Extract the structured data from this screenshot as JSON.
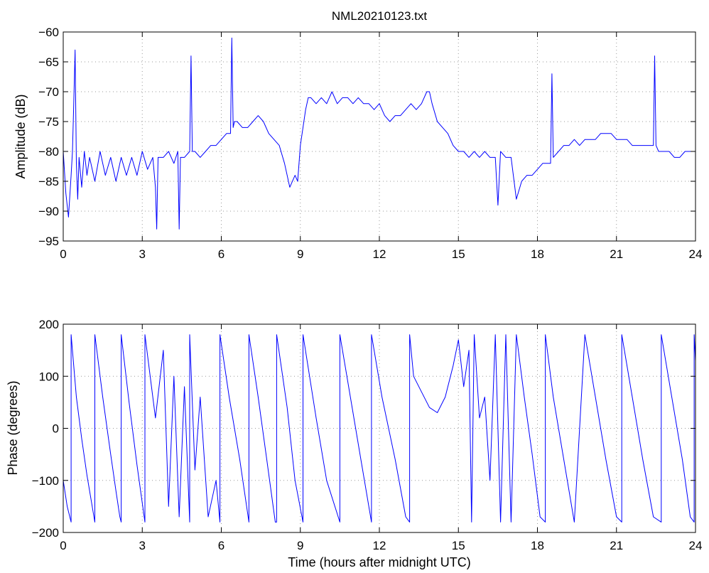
{
  "colors": {
    "trace": "#0000ff",
    "axes": "#000000",
    "grid": "#9a9a9a",
    "background": "#ffffff"
  },
  "chart_data": [
    {
      "id": "amplitude",
      "type": "line",
      "title": "NML20210123.txt",
      "xlabel": "",
      "ylabel": "Amplitude (dB)",
      "xlim": [
        0,
        24
      ],
      "ylim": [
        -95,
        -60
      ],
      "xticks": [
        0,
        3,
        6,
        9,
        12,
        15,
        18,
        21,
        24
      ],
      "xtick_labels": [
        "0",
        "3",
        "6",
        "9",
        "12",
        "15",
        "18",
        "21",
        "24"
      ],
      "yticks": [
        -95,
        -90,
        -85,
        -80,
        -75,
        -70,
        -65,
        -60
      ],
      "ytick_labels": [
        "−95",
        "−90",
        "−85",
        "−80",
        "−75",
        "−70",
        "−65",
        "−60"
      ],
      "grid": true,
      "series": [
        {
          "x": [
            0,
            0.1,
            0.2,
            0.3,
            0.35,
            0.4,
            0.45,
            0.5,
            0.55,
            0.6,
            0.7,
            0.8,
            0.9,
            1.0,
            1.2,
            1.4,
            1.6,
            1.8,
            2.0,
            2.2,
            2.4,
            2.6,
            2.8,
            3.0,
            3.2,
            3.4,
            3.5,
            3.55,
            3.6,
            3.8,
            4.0,
            4.2,
            4.35,
            4.4,
            4.45,
            4.6,
            4.8,
            4.85,
            4.9,
            5.0,
            5.2,
            5.4,
            5.6,
            5.8,
            6.0,
            6.2,
            6.35,
            6.4,
            6.45,
            6.5,
            6.6,
            6.8,
            7.0,
            7.2,
            7.4,
            7.6,
            7.8,
            8.0,
            8.2,
            8.4,
            8.6,
            8.8,
            8.9,
            9.0,
            9.2,
            9.3,
            9.4,
            9.6,
            9.8,
            10.0,
            10.2,
            10.4,
            10.6,
            10.8,
            11.0,
            11.2,
            11.4,
            11.6,
            11.8,
            12.0,
            12.2,
            12.4,
            12.6,
            12.8,
            13.0,
            13.2,
            13.4,
            13.6,
            13.8,
            13.9,
            14.0,
            14.2,
            14.4,
            14.6,
            14.8,
            15.0,
            15.2,
            15.4,
            15.6,
            15.8,
            16.0,
            16.2,
            16.4,
            16.5,
            16.6,
            16.8,
            17.0,
            17.2,
            17.4,
            17.6,
            17.8,
            18.0,
            18.2,
            18.4,
            18.5,
            18.55,
            18.6,
            18.8,
            19.0,
            19.2,
            19.4,
            19.6,
            19.8,
            20.0,
            20.2,
            20.4,
            20.6,
            20.8,
            21.0,
            21.2,
            21.4,
            21.6,
            21.8,
            22.0,
            22.2,
            22.4,
            22.45,
            22.5,
            22.6,
            22.8,
            23.0,
            23.2,
            23.4,
            23.6,
            23.8,
            24.0
          ],
          "y": [
            -80,
            -87,
            -91,
            -84,
            -80,
            -72,
            -63,
            -82,
            -88,
            -81,
            -86,
            -80,
            -84,
            -81,
            -85,
            -80,
            -84,
            -81,
            -85,
            -81,
            -84,
            -81,
            -84,
            -80,
            -83,
            -81,
            -86,
            -93,
            -81,
            -81,
            -80,
            -82,
            -80,
            -93,
            -81,
            -81,
            -80,
            -64,
            -80,
            -80,
            -81,
            -80,
            -79,
            -79,
            -78,
            -77,
            -77,
            -61,
            -76,
            -75,
            -75,
            -76,
            -76,
            -75,
            -74,
            -75,
            -77,
            -78,
            -79,
            -82,
            -86,
            -84,
            -85,
            -79,
            -73,
            -71,
            -71,
            -72,
            -71,
            -72,
            -70,
            -72,
            -71,
            -71,
            -72,
            -71,
            -72,
            -72,
            -73,
            -72,
            -74,
            -75,
            -74,
            -74,
            -73,
            -72,
            -73,
            -72,
            -70,
            -70,
            -72,
            -75,
            -76,
            -77,
            -79,
            -80,
            -80,
            -81,
            -80,
            -81,
            -80,
            -81,
            -81,
            -89,
            -80,
            -81,
            -81,
            -88,
            -85,
            -84,
            -84,
            -83,
            -82,
            -82,
            -82,
            -67,
            -81,
            -80,
            -79,
            -79,
            -78,
            -79,
            -78,
            -78,
            -78,
            -77,
            -77,
            -77,
            -78,
            -78,
            -78,
            -79,
            -79,
            -79,
            -79,
            -79,
            -64,
            -79,
            -80,
            -80,
            -80,
            -81,
            -81,
            -80,
            -80,
            -80
          ]
        }
      ]
    },
    {
      "id": "phase",
      "type": "line",
      "title": "",
      "xlabel": "Time (hours after midnight UTC)",
      "ylabel": "Phase (degrees)",
      "xlim": [
        0,
        24
      ],
      "ylim": [
        -200,
        200
      ],
      "xticks": [
        0,
        3,
        6,
        9,
        12,
        15,
        18,
        21,
        24
      ],
      "xtick_labels": [
        "0",
        "3",
        "6",
        "9",
        "12",
        "15",
        "18",
        "21",
        "24"
      ],
      "yticks": [
        -200,
        -100,
        0,
        100,
        200
      ],
      "ytick_labels": [
        "−200",
        "−100",
        "0",
        "100",
        "200"
      ],
      "grid": true,
      "series": [
        {
          "x": [
            0,
            0.15,
            0.3,
            0.3,
            0.5,
            0.7,
            0.9,
            1.2,
            1.2,
            1.5,
            1.8,
            2.0,
            2.15,
            2.2,
            2.2,
            2.5,
            2.8,
            3.1,
            3.1,
            3.5,
            3.8,
            4.0,
            4.2,
            4.4,
            4.6,
            4.8,
            4.8,
            5.0,
            5.2,
            5.5,
            5.8,
            5.95,
            5.95,
            6.3,
            6.7,
            7.05,
            7.05,
            7.4,
            7.7,
            8.05,
            8.1,
            8.1,
            8.5,
            8.8,
            9.1,
            9.1,
            9.6,
            10.0,
            10.5,
            10.5,
            10.9,
            11.3,
            11.7,
            11.7,
            12.1,
            12.6,
            13.0,
            13.15,
            13.15,
            13.3,
            13.6,
            13.9,
            14.2,
            14.5,
            14.8,
            15.0,
            15.2,
            15.4,
            15.5,
            15.6,
            15.8,
            16.0,
            16.2,
            16.4,
            16.6,
            16.8,
            17.0,
            17.2,
            17.5,
            17.8,
            18.1,
            18.3,
            18.3,
            18.6,
            19.0,
            19.4,
            19.8,
            19.8,
            20.2,
            20.6,
            21.0,
            21.2,
            21.2,
            21.6,
            22.0,
            22.4,
            22.7,
            22.7,
            23.1,
            23.5,
            23.8,
            23.95,
            23.95,
            24.0
          ],
          "y": [
            -100,
            -150,
            -180,
            180,
            60,
            -20,
            -90,
            -180,
            180,
            60,
            -50,
            -120,
            -170,
            -180,
            180,
            50,
            -70,
            -180,
            180,
            20,
            150,
            -150,
            100,
            -170,
            80,
            -180,
            180,
            -80,
            60,
            -170,
            -100,
            -180,
            180,
            60,
            -60,
            -180,
            180,
            60,
            -50,
            -180,
            -180,
            180,
            40,
            -100,
            -180,
            180,
            20,
            -100,
            -180,
            180,
            60,
            -60,
            -180,
            180,
            60,
            -60,
            -170,
            -180,
            180,
            100,
            70,
            40,
            30,
            60,
            120,
            170,
            80,
            150,
            -180,
            180,
            20,
            60,
            -100,
            180,
            -180,
            180,
            -180,
            180,
            60,
            -50,
            -170,
            -180,
            180,
            60,
            -60,
            -180,
            180,
            180,
            60,
            -60,
            -170,
            -180,
            180,
            60,
            -60,
            -170,
            -180,
            180,
            60,
            -60,
            -170,
            -180,
            180,
            130
          ]
        }
      ]
    }
  ]
}
